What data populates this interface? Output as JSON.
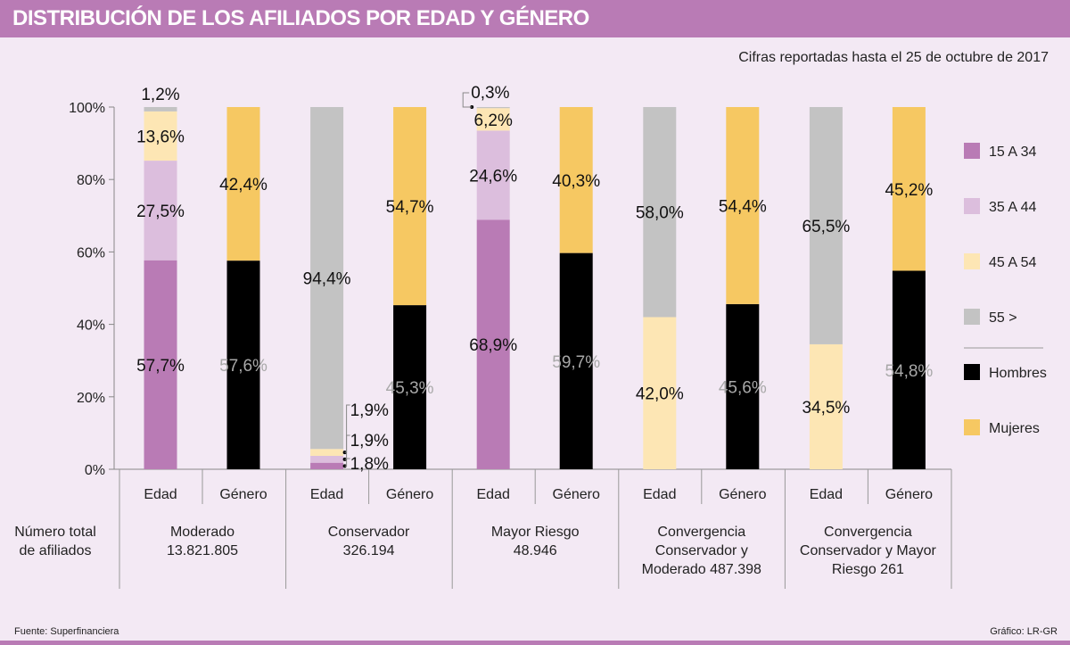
{
  "title": "DISTRIBUCIÓN DE LOS AFILIADOS POR EDAD Y GÉNERO",
  "subtitle": "Cifras reportadas hasta el 25 de octubre de 2017",
  "source": "Fuente: Superfinanciera",
  "credit": "Gráfico: LR-GR",
  "row_label": [
    "Número total",
    "de afiliados"
  ],
  "chart_data": {
    "type": "bar",
    "stacked": true,
    "yticks": [
      "0%",
      "20%",
      "40%",
      "60%",
      "80%",
      "100%"
    ],
    "ylim": [
      0,
      100
    ],
    "legend_position": "right",
    "legend": [
      {
        "name": "15 A 34",
        "color": "#b97bb5"
      },
      {
        "name": "35 A 44",
        "color": "#dcbedd"
      },
      {
        "name": "45 A 54",
        "color": "#fde6b4"
      },
      {
        "name": "55  >",
        "color": "#c3c3c3"
      },
      {
        "name": "Hombres",
        "color": "#000000"
      },
      {
        "name": "Mujeres",
        "color": "#f6c862"
      }
    ],
    "groups": [
      {
        "name": [
          "Moderado",
          "13.821.805"
        ],
        "edad": [
          57.7,
          27.5,
          13.6,
          1.2
        ],
        "edad_labels": [
          "57,7%",
          "27,5%",
          "13,6%",
          "1,2%"
        ],
        "genero": [
          57.6,
          42.4
        ],
        "genero_labels": [
          "57,6%",
          "42,4%"
        ]
      },
      {
        "name": [
          "Conservador",
          "326.194"
        ],
        "edad": [
          1.8,
          1.9,
          1.9,
          94.4
        ],
        "edad_labels": [
          "1,8%",
          "1,9%",
          "1,9%",
          "94,4%"
        ],
        "genero": [
          45.3,
          54.7
        ],
        "genero_labels": [
          "45,3%",
          "54,7%"
        ]
      },
      {
        "name": [
          "Mayor Riesgo",
          "48.946"
        ],
        "edad": [
          68.9,
          24.6,
          6.2,
          0.3
        ],
        "edad_labels": [
          "68,9%",
          "24,6%",
          "6,2%",
          "0,3%"
        ],
        "genero": [
          59.7,
          40.3
        ],
        "genero_labels": [
          "59,7%",
          "40,3%"
        ]
      },
      {
        "name": [
          "Convergencia",
          "Conservador y",
          "Moderado 487.398"
        ],
        "edad": [
          0,
          0,
          42.0,
          58.0
        ],
        "edad_labels": [
          "",
          "",
          "42,0%",
          "58,0%"
        ],
        "genero": [
          45.6,
          54.4
        ],
        "genero_labels": [
          "45,6%",
          "54,4%"
        ]
      },
      {
        "name": [
          "Convergencia",
          "Conservador y Mayor",
          "Riesgo 261"
        ],
        "edad": [
          0,
          0,
          34.5,
          65.5
        ],
        "edad_labels": [
          "",
          "",
          "34,5%",
          "65,5%"
        ],
        "genero": [
          54.8,
          45.2
        ],
        "genero_labels": [
          "54,8%",
          "45,2%"
        ]
      }
    ],
    "sub_labels": [
      "Edad",
      "Género"
    ]
  }
}
